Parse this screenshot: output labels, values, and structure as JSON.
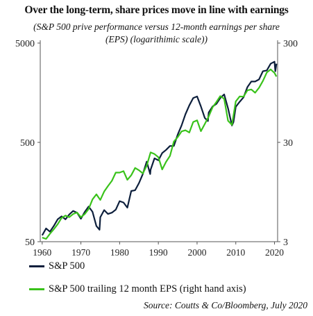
{
  "title": "Over the long-term, share prices move in line with earnings",
  "subtitle_line1": "(S&P 500 prive performance versus 12-month earnings per share",
  "subtitle_line2": "(EPS) (logarithimic scale))",
  "source": "Source: Coutts & Co/Bloomberg, July 2020",
  "colors": {
    "sp500": "#0d1f3c",
    "eps": "#39c21a",
    "axis": "#555555"
  },
  "chart_data": {
    "type": "line",
    "left_axis": {
      "scale": "log",
      "ylim": [
        50,
        5000
      ],
      "ticks": [
        50,
        500,
        5000
      ]
    },
    "right_axis": {
      "scale": "log",
      "ylim": [
        3,
        300
      ],
      "ticks": [
        3,
        30,
        300
      ]
    },
    "x_ticks": [
      1960,
      1970,
      1980,
      1990,
      2000,
      2010,
      2020
    ],
    "xlim": [
      1959.5,
      2020.8
    ],
    "series": [
      {
        "name": "S&P 500",
        "axis": "left",
        "points": [
          [
            1960,
            58
          ],
          [
            1961,
            68
          ],
          [
            1962,
            63
          ],
          [
            1963,
            72
          ],
          [
            1964,
            84
          ],
          [
            1965,
            90
          ],
          [
            1966,
            84
          ],
          [
            1967,
            94
          ],
          [
            1968,
            102
          ],
          [
            1969,
            98
          ],
          [
            1970,
            85
          ],
          [
            1971,
            100
          ],
          [
            1972,
            113
          ],
          [
            1973,
            100
          ],
          [
            1974,
            72
          ],
          [
            1974.8,
            66
          ],
          [
            1975,
            88
          ],
          [
            1976,
            104
          ],
          [
            1977,
            95
          ],
          [
            1978,
            98
          ],
          [
            1979,
            105
          ],
          [
            1980,
            128
          ],
          [
            1981,
            124
          ],
          [
            1982,
            110
          ],
          [
            1983,
            162
          ],
          [
            1984,
            165
          ],
          [
            1985,
            195
          ],
          [
            1986,
            240
          ],
          [
            1987,
            320
          ],
          [
            1987.9,
            240
          ],
          [
            1988,
            265
          ],
          [
            1989,
            345
          ],
          [
            1990,
            330
          ],
          [
            1991,
            390
          ],
          [
            1992,
            420
          ],
          [
            1993,
            460
          ],
          [
            1994,
            460
          ],
          [
            1995,
            600
          ],
          [
            1996,
            740
          ],
          [
            1997,
            960
          ],
          [
            1998,
            1180
          ],
          [
            1999,
            1400
          ],
          [
            2000,
            1450
          ],
          [
            2001,
            1150
          ],
          [
            2002,
            880
          ],
          [
            2002.8,
            820
          ],
          [
            2003,
            1000
          ],
          [
            2004,
            1150
          ],
          [
            2005,
            1220
          ],
          [
            2006,
            1400
          ],
          [
            2007,
            1520
          ],
          [
            2008,
            1100
          ],
          [
            2009,
            740
          ],
          [
            2009.4,
            800
          ],
          [
            2010,
            1140
          ],
          [
            2011,
            1280
          ],
          [
            2012,
            1420
          ],
          [
            2013,
            1800
          ],
          [
            2014,
            2050
          ],
          [
            2015,
            2050
          ],
          [
            2016,
            2150
          ],
          [
            2017,
            2600
          ],
          [
            2018,
            2650
          ],
          [
            2019,
            3100
          ],
          [
            2020,
            3250
          ],
          [
            2020.2,
            2600
          ],
          [
            2020.5,
            3100
          ]
        ]
      },
      {
        "name": "S&P 500 trailing 12 month EPS (right hand axis)",
        "axis": "right",
        "points": [
          [
            1960,
            3.3
          ],
          [
            1961,
            3.2
          ],
          [
            1962,
            3.6
          ],
          [
            1963,
            4.0
          ],
          [
            1964,
            4.5
          ],
          [
            1965,
            5.2
          ],
          [
            1966,
            5.5
          ],
          [
            1967,
            5.3
          ],
          [
            1968,
            5.7
          ],
          [
            1969,
            5.9
          ],
          [
            1970,
            5.3
          ],
          [
            1971,
            5.7
          ],
          [
            1972,
            6.4
          ],
          [
            1973,
            8.0
          ],
          [
            1974,
            9.0
          ],
          [
            1975,
            7.9
          ],
          [
            1976,
            9.6
          ],
          [
            1977,
            10.9
          ],
          [
            1978,
            12.3
          ],
          [
            1979,
            14.9
          ],
          [
            1980,
            14.9
          ],
          [
            1981,
            15.4
          ],
          [
            1982,
            12.6
          ],
          [
            1983,
            14.0
          ],
          [
            1984,
            16.6
          ],
          [
            1985,
            15.7
          ],
          [
            1986,
            14.6
          ],
          [
            1987,
            17.5
          ],
          [
            1988,
            23.8
          ],
          [
            1989,
            22.9
          ],
          [
            1990,
            21.3
          ],
          [
            1991,
            16.0
          ],
          [
            1992,
            19.1
          ],
          [
            1993,
            21.9
          ],
          [
            1994,
            30.6
          ],
          [
            1995,
            33.9
          ],
          [
            1996,
            38.7
          ],
          [
            1997,
            39.7
          ],
          [
            1998,
            37.7
          ],
          [
            1999,
            48.2
          ],
          [
            2000,
            50.0
          ],
          [
            2001,
            38.9
          ],
          [
            2002,
            46.0
          ],
          [
            2003,
            54.7
          ],
          [
            2004,
            67.7
          ],
          [
            2005,
            76.5
          ],
          [
            2006,
            87.7
          ],
          [
            2007,
            82.5
          ],
          [
            2008,
            49.5
          ],
          [
            2009,
            45.0
          ],
          [
            2010,
            77.4
          ],
          [
            2011,
            86.9
          ],
          [
            2012,
            86.5
          ],
          [
            2013,
            100.2
          ],
          [
            2014,
            102.3
          ],
          [
            2015,
            94.9
          ],
          [
            2016,
            106.3
          ],
          [
            2017,
            124.5
          ],
          [
            2018,
            151.6
          ],
          [
            2019,
            162.9
          ],
          [
            2020,
            150
          ],
          [
            2020.5,
            138
          ]
        ]
      }
    ]
  },
  "legend": [
    {
      "label": "S&P 500"
    },
    {
      "label": "S&P 500 trailing 12 month EPS (right hand axis)"
    }
  ]
}
